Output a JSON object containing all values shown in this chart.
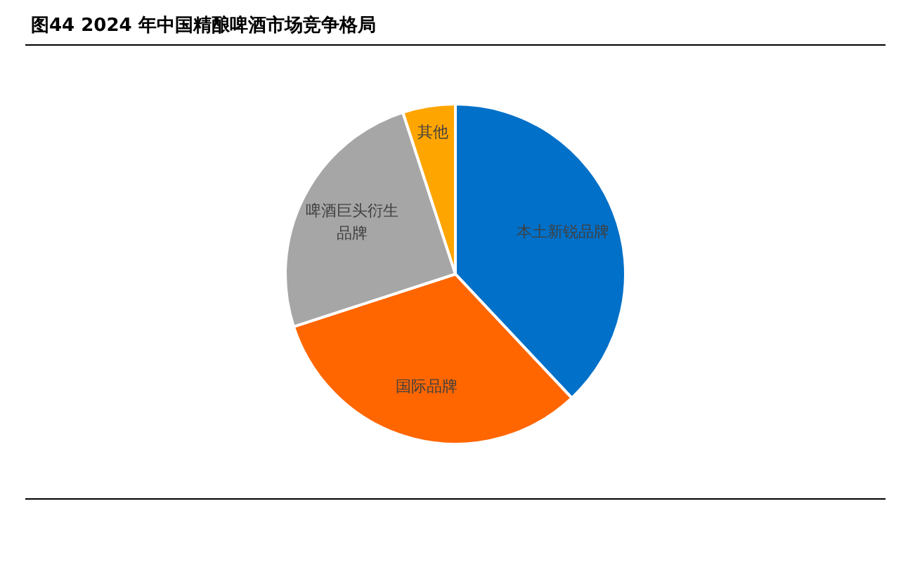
{
  "chart_data": {
    "type": "pie",
    "title": "图44 2024 年中国精酿啤酒市场竞争格局",
    "categories": [
      "本土新锐品牌",
      "国际品牌",
      "啤酒巨头衍生品牌",
      "其他"
    ],
    "values": [
      38,
      32,
      25,
      5
    ],
    "colors": [
      "#0070c8",
      "#ff6600",
      "#a6a6a6",
      "#ffa500"
    ]
  }
}
